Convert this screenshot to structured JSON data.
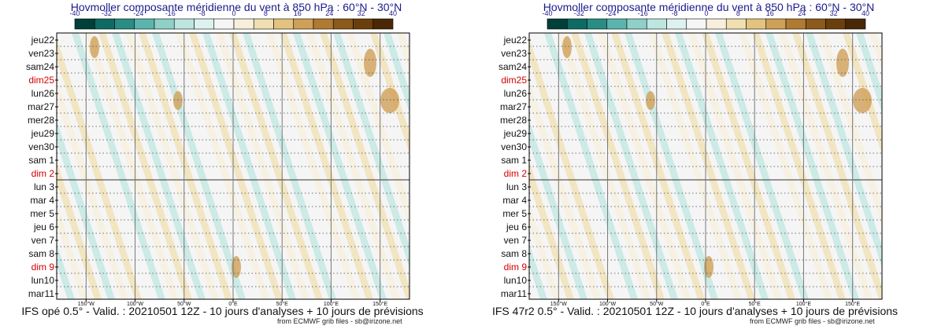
{
  "chart_data": [
    {
      "type": "heatmap",
      "title": "Hovmoller composante méridienne du vent à 850 hPa : 60°N - 30°N",
      "caption": "IFS opé 0.5° - Valid. : 20210501 12Z - 10 jours d'analyses + 10 jours de prévisions",
      "credit": "from ECMWF grib files - sb@irizone.net",
      "colorbar": {
        "ticks": [
          -40,
          -32,
          -24,
          -16,
          -8,
          0,
          8,
          16,
          24,
          32,
          40
        ]
      },
      "x_ticks": [
        "150°W",
        "100°W",
        "50°W",
        "0°E",
        "50°E",
        "100°E",
        "150°E"
      ],
      "x_values": [
        -150,
        -100,
        -50,
        0,
        50,
        100,
        150
      ],
      "xlim": [
        -180,
        180
      ],
      "y_ticks": [
        "jeu22",
        "ven23",
        "sam24",
        "dim25",
        "lun26",
        "mar27",
        "mer28",
        "jeu29",
        "ven30",
        "sam 1",
        "dim 2",
        "lun 3",
        "mar 4",
        "mer 5",
        "jeu 6",
        "ven 7",
        "sam 8",
        "dim 9",
        "lun10",
        "mar11"
      ],
      "sunday_labels": [
        "dim25",
        "dim 2",
        "dim 9"
      ],
      "analysis_forecast_boundary": "dim 2"
    },
    {
      "type": "heatmap",
      "title": "Hovmoller composante méridienne du vent à 850 hPa : 60°N - 30°N",
      "caption": "IFS 47r2 0.5° - Valid. : 20210501 12Z - 10 jours d'analyses + 10 jours de prévisions",
      "credit": "from ECMWF grib files - sb@irizone.net",
      "colorbar": {
        "ticks": [
          -40,
          -32,
          -24,
          -16,
          -8,
          0,
          8,
          16,
          24,
          32,
          40
        ]
      },
      "x_ticks": [
        "150°W",
        "100°W",
        "50°W",
        "0°E",
        "50°E",
        "100°E",
        "150°E"
      ],
      "x_values": [
        -150,
        -100,
        -50,
        0,
        50,
        100,
        150
      ],
      "xlim": [
        -180,
        180
      ],
      "y_ticks": [
        "jeu22",
        "ven23",
        "sam24",
        "dim25",
        "lun26",
        "mar27",
        "mer28",
        "jeu29",
        "ven30",
        "sam 1",
        "dim 2",
        "lun 3",
        "mar 4",
        "mer 5",
        "jeu 6",
        "ven 7",
        "sam 8",
        "dim 9",
        "lun10",
        "mar11"
      ],
      "sunday_labels": [
        "dim25",
        "dim 2",
        "dim 9"
      ],
      "analysis_forecast_boundary": "dim 2"
    }
  ],
  "colors": {
    "title": "#1a1a8c",
    "sunday": "#d40000",
    "text": "#111111",
    "colorbar": [
      "#01403a",
      "#0d6b63",
      "#2a8d84",
      "#5cb5ac",
      "#8fd0c8",
      "#bde6e0",
      "#ddf2ef",
      "#f5f5f5",
      "#f7efdc",
      "#f0dfb0",
      "#e3c37e",
      "#cfa057",
      "#b07a30",
      "#8c5a1a",
      "#6b3f0c",
      "#4a2805"
    ]
  }
}
